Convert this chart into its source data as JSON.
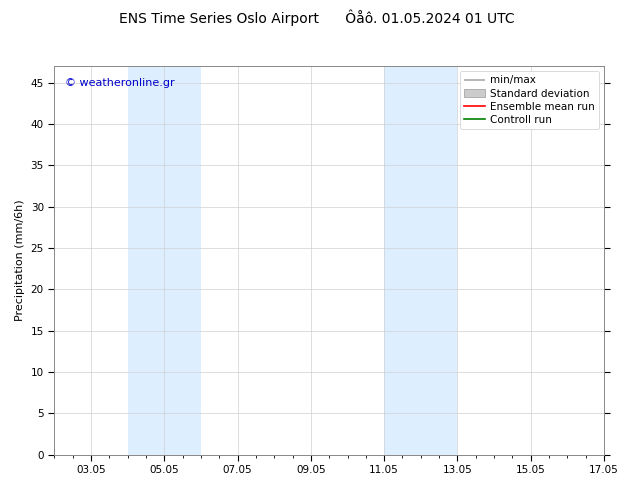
{
  "title": "ENS Time Series Oslo Airport      Ôåô. 01.05.2024 01 UTC",
  "ylabel": "Precipitation (mm/6h)",
  "ylim": [
    0,
    47
  ],
  "yticks": [
    0,
    5,
    10,
    15,
    20,
    25,
    30,
    35,
    40,
    45
  ],
  "xlim": [
    0,
    15
  ],
  "xtick_positions": [
    1,
    3,
    5,
    7,
    9,
    11,
    13,
    15
  ],
  "xtick_labels": [
    "03.05",
    "05.05",
    "07.05",
    "09.05",
    "11.05",
    "13.05",
    "15.05",
    "17.05"
  ],
  "shaded_regions": [
    {
      "start": 2.0,
      "end": 4.0,
      "color": "#ddeeff"
    },
    {
      "start": 9.0,
      "end": 11.0,
      "color": "#ddeeff"
    }
  ],
  "watermark": "© weatheronline.gr",
  "watermark_color": "#0000cc",
  "bg_color": "#ffffff",
  "plot_bg_color": "#ffffff",
  "grid_color": "#d0d0d0",
  "legend_items": [
    {
      "label": "min/max",
      "color": "#aaaaaa",
      "lw": 1.2
    },
    {
      "label": "Standard deviation",
      "color": "#cccccc",
      "lw": 5
    },
    {
      "label": "Ensemble mean run",
      "color": "#ff0000",
      "lw": 1.2
    },
    {
      "label": "Controll run",
      "color": "#008000",
      "lw": 1.2
    }
  ],
  "title_fontsize": 10,
  "axis_fontsize": 8,
  "tick_fontsize": 7.5,
  "legend_fontsize": 7.5,
  "watermark_fontsize": 8
}
